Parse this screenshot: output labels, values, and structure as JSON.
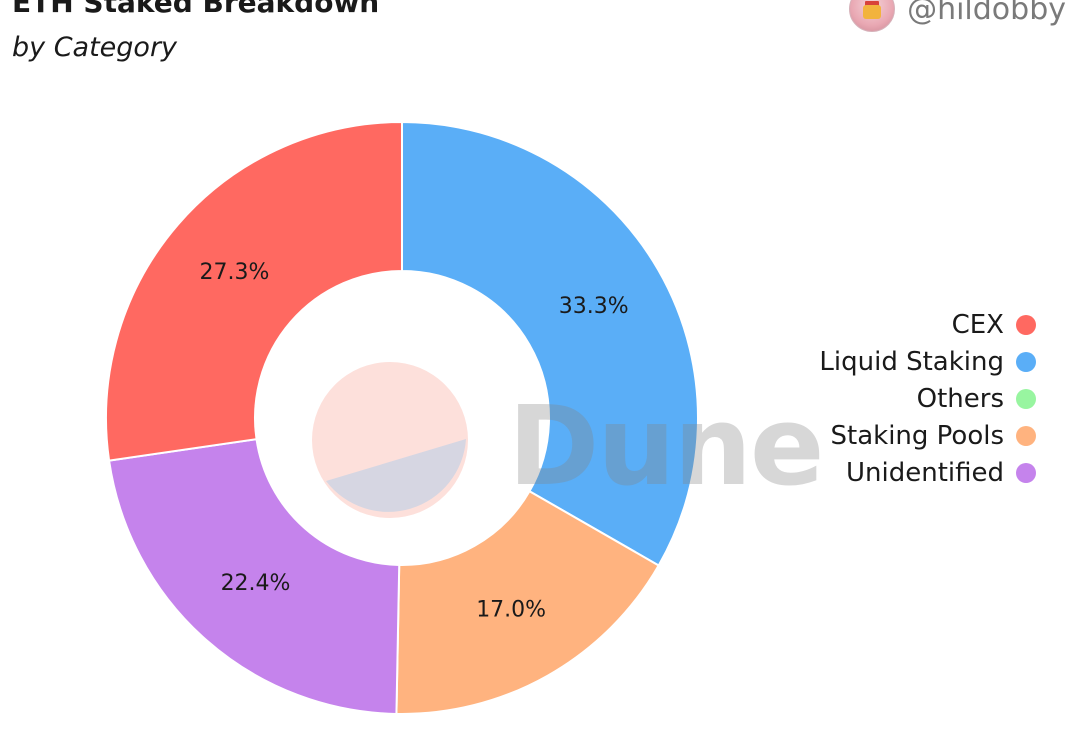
{
  "header": {
    "title": "ETH Staked Breakdown",
    "subtitle": "by Category",
    "author_handle": "@hildobby"
  },
  "watermark": "Dune",
  "chart_data": {
    "type": "pie",
    "variant": "donut",
    "title": "ETH Staked Breakdown",
    "subtitle": "by Category",
    "legend_position": "right",
    "categories": [
      "CEX",
      "Liquid Staking",
      "Others",
      "Staking Pools",
      "Unidentified"
    ],
    "values": [
      27.3,
      33.3,
      0.0,
      17.0,
      22.4
    ],
    "value_labels": [
      "27.3%",
      "33.3%",
      "",
      "17.0%",
      "22.4%"
    ],
    "colors": [
      "#ff6961",
      "#5aaef7",
      "#98f5a0",
      "#ffb37f",
      "#c583ec"
    ],
    "start_category": "Liquid Staking",
    "direction": "clockwise"
  }
}
